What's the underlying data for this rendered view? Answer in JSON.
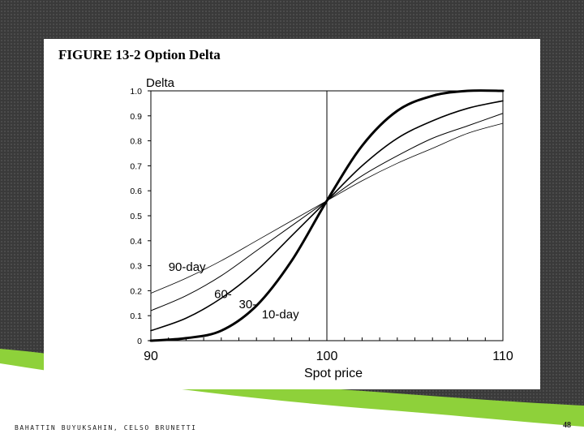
{
  "slide": {
    "figure_title": "FIGURE 13-2 Option Delta",
    "footer": "BAHATTIN BUYUKSAHIN, CELSO BRUNETTI",
    "page_number": "48",
    "colors": {
      "background": "#3a3a3a",
      "accent_green": "#8ed13a",
      "card": "#ffffff",
      "ink": "#000000"
    }
  },
  "chart_data": {
    "type": "line",
    "title": "FIGURE 13-2 Option Delta",
    "xlabel": "Spot price",
    "ylabel": "Delta",
    "xlim": [
      90,
      110
    ],
    "ylim": [
      0,
      1
    ],
    "x_ticks": [
      "90",
      "100",
      "110"
    ],
    "y_ticks": [
      "0",
      "0.1",
      "0.2",
      "0.3",
      "0.4",
      "0.5",
      "0.6",
      "0.7",
      "0.8",
      "0.9",
      "1.0"
    ],
    "vertical_reference_line": 100,
    "grid": false,
    "legend": "inline labels",
    "x": [
      90,
      92,
      94,
      96,
      98,
      100,
      102,
      104,
      106,
      108,
      110
    ],
    "series": [
      {
        "name": "10-day",
        "stroke": 3,
        "values": [
          0.0,
          0.01,
          0.04,
          0.14,
          0.32,
          0.56,
          0.78,
          0.92,
          0.98,
          1.0,
          1.0
        ]
      },
      {
        "name": "30-",
        "stroke": 1.6,
        "values": [
          0.04,
          0.09,
          0.17,
          0.28,
          0.42,
          0.56,
          0.7,
          0.81,
          0.88,
          0.93,
          0.96
        ]
      },
      {
        "name": "60-",
        "stroke": 1,
        "values": [
          0.12,
          0.18,
          0.26,
          0.36,
          0.46,
          0.56,
          0.66,
          0.74,
          0.81,
          0.86,
          0.91
        ]
      },
      {
        "name": "90-day",
        "stroke": 0.8,
        "values": [
          0.19,
          0.25,
          0.32,
          0.4,
          0.48,
          0.56,
          0.64,
          0.71,
          0.77,
          0.83,
          0.87
        ]
      }
    ],
    "annotations": [
      "90-day",
      "60-",
      "30-",
      "10-day"
    ]
  }
}
